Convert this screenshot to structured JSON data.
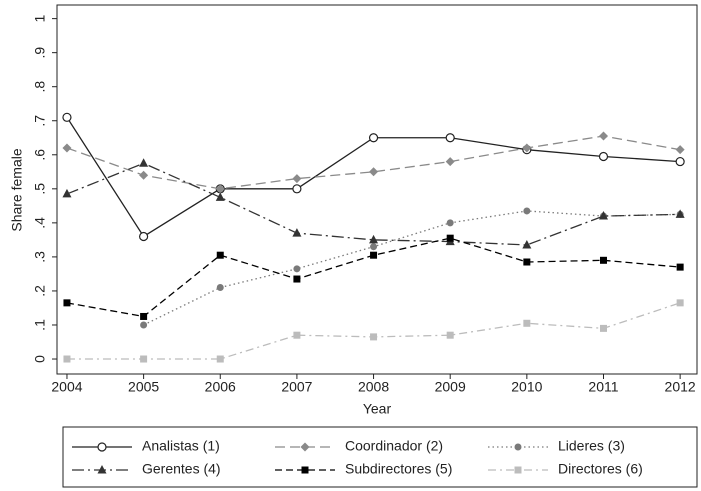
{
  "chart_data": {
    "type": "line",
    "x_label": "Year",
    "y_label": "Share female",
    "x": [
      2004,
      2005,
      2006,
      2007,
      2008,
      2009,
      2010,
      2011,
      2012
    ],
    "xlim": [
      2003.87,
      2012.22
    ],
    "xticks": [
      2004,
      2005,
      2006,
      2007,
      2008,
      2009,
      2010,
      2011,
      2012
    ],
    "ylim": [
      -0.044,
      1.04
    ],
    "yticks": [
      0,
      {
        "value": 0.1,
        "label": ".1"
      },
      {
        "value": 0.2,
        "label": ".2"
      },
      {
        "value": 0.3,
        "label": ".3"
      },
      {
        "value": 0.4,
        "label": ".4"
      },
      {
        "value": 0.5,
        "label": ".5"
      },
      {
        "value": 0.6,
        "label": ".6"
      },
      {
        "value": 0.7,
        "label": ".7"
      },
      {
        "value": 0.8,
        "label": ".8"
      },
      {
        "value": 0.9,
        "label": ".9"
      },
      1
    ],
    "grid": false,
    "legend_position": "bottom",
    "series": [
      {
        "name": "Analistas (1)",
        "color": "#222222",
        "dash": "solid",
        "marker": "circle-open",
        "values": [
          0.71,
          0.36,
          0.5,
          0.5,
          0.65,
          0.65,
          0.615,
          0.595,
          0.58
        ]
      },
      {
        "name": "Coordinador (2)",
        "color": "#8a8a8a",
        "dash": "longdash",
        "marker": "diamond",
        "values": [
          0.62,
          0.54,
          0.5,
          0.53,
          0.55,
          0.58,
          0.62,
          0.655,
          0.615
        ]
      },
      {
        "name": "Lideres (3)",
        "color": "#7a7a7a",
        "dash": "dot",
        "marker": "circle",
        "values": [
          null,
          0.1,
          0.21,
          0.265,
          0.33,
          0.4,
          0.435,
          0.42,
          0.425
        ]
      },
      {
        "name": "Gerentes (4)",
        "color": "#333333",
        "dash": "longdashdot",
        "marker": "triangle",
        "values": [
          0.485,
          0.575,
          0.475,
          0.37,
          0.35,
          0.345,
          0.335,
          0.42,
          0.425
        ]
      },
      {
        "name": "Subdirectores (5)",
        "color": "#000000",
        "dash": "dash",
        "marker": "square",
        "values": [
          0.165,
          0.125,
          0.305,
          0.235,
          0.305,
          0.355,
          0.285,
          0.29,
          0.27
        ]
      },
      {
        "name": "Directores (6)",
        "color": "#bcbcbc",
        "dash": "dashdot",
        "marker": "square",
        "values": [
          0,
          0,
          0,
          0.07,
          0.065,
          0.07,
          0.105,
          0.09,
          0.165
        ]
      }
    ]
  }
}
